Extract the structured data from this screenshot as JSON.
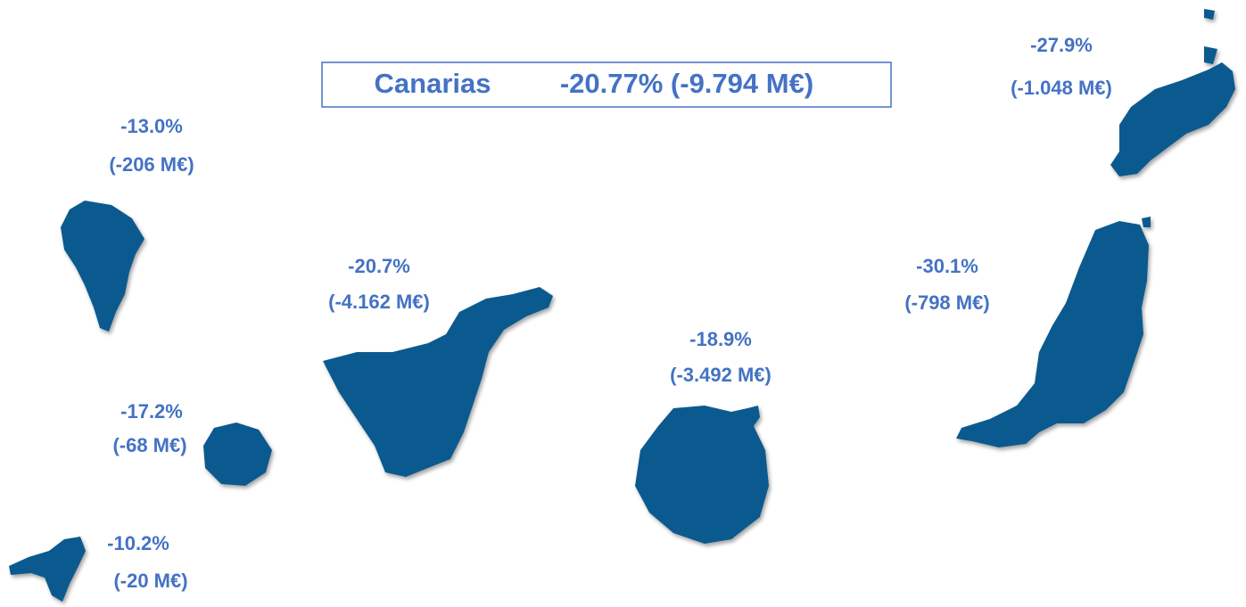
{
  "title": {
    "region": "Canarias",
    "change": "-20.77% (-9.794 M€)"
  },
  "islands": [
    {
      "percent": "-13.0%",
      "amount": "(-206 M€)"
    },
    {
      "percent": "-17.2%",
      "amount": "(-68 M€)"
    },
    {
      "percent": "-10.2%",
      "amount": "(-20 M€)"
    },
    {
      "percent": "-20.7%",
      "amount": "(-4.162 M€)"
    },
    {
      "percent": "-18.9%",
      "amount": "(-3.492 M€)"
    },
    {
      "percent": "-30.1%",
      "amount": "(-798 M€)"
    },
    {
      "percent": "-27.9%",
      "amount": "(-1.048 M€)"
    }
  ]
}
